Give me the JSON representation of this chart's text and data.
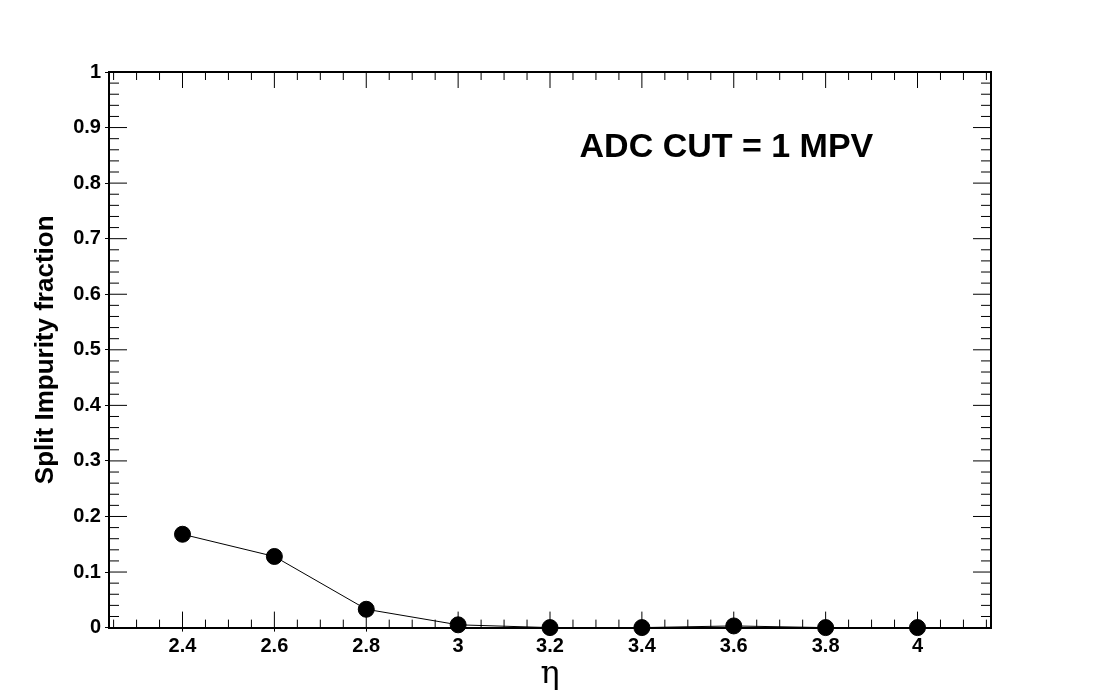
{
  "chart_data": {
    "type": "line",
    "xlabel": "η",
    "ylabel": "Split Impurity fraction",
    "annotations": [
      "ADC CUT = 1 MPV"
    ],
    "x": [
      2.4,
      2.6,
      2.8,
      3.0,
      3.2,
      3.4,
      3.6,
      3.8,
      4.0
    ],
    "series": [
      {
        "color": "#000000",
        "values": [
          0.168,
          0.128,
          0.033,
          0.005,
          0,
          0,
          0.003,
          0,
          0
        ]
      }
    ],
    "xlim": [
      2.24,
      4.16
    ],
    "xticks": [
      {
        "value": 2.4,
        "label": "2.4"
      },
      {
        "value": 2.6,
        "label": "2.6"
      },
      {
        "value": 2.8,
        "label": "2.8"
      },
      {
        "value": 3,
        "label": "3"
      },
      {
        "value": 3.2,
        "label": "3.2"
      },
      {
        "value": 3.4,
        "label": "3.4"
      },
      {
        "value": 3.6,
        "label": "3.6"
      },
      {
        "value": 3.8,
        "label": "3.8"
      },
      {
        "value": 4,
        "label": "4"
      }
    ],
    "ylim": [
      0,
      1
    ],
    "yticks": [
      0,
      {
        "value": 0.1,
        "label": "0.1"
      },
      {
        "value": 0.2,
        "label": "0.2"
      },
      {
        "value": 0.3,
        "label": "0.3"
      },
      {
        "value": 0.4,
        "label": "0.4"
      },
      {
        "value": 0.5,
        "label": "0.5"
      },
      {
        "value": 0.6,
        "label": "0.6"
      },
      {
        "value": 0.7,
        "label": "0.7"
      },
      {
        "value": 0.8,
        "label": "0.8"
      },
      {
        "value": 0.9,
        "label": "0.9"
      },
      1
    ],
    "marker": "circle",
    "line_style": "solid",
    "grid": false,
    "legend": false
  }
}
